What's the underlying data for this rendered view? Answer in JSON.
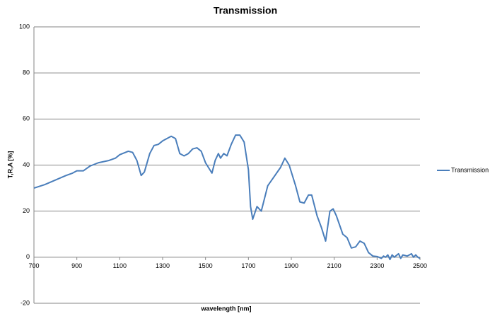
{
  "chart_data": {
    "type": "line",
    "title": "Transmission",
    "xlabel": "wavelength [nm]",
    "ylabel": "T,R,A [%]",
    "x": [
      700,
      750,
      800,
      850,
      880,
      900,
      930,
      960,
      1000,
      1050,
      1080,
      1100,
      1140,
      1160,
      1180,
      1200,
      1215,
      1240,
      1260,
      1280,
      1300,
      1320,
      1340,
      1360,
      1380,
      1400,
      1420,
      1440,
      1460,
      1480,
      1500,
      1520,
      1530,
      1545,
      1560,
      1570,
      1585,
      1600,
      1620,
      1640,
      1660,
      1680,
      1700,
      1710,
      1720,
      1740,
      1760,
      1790,
      1820,
      1850,
      1870,
      1890,
      1920,
      1940,
      1960,
      1980,
      1995,
      2020,
      2040,
      2060,
      2080,
      2095,
      2110,
      2140,
      2160,
      2180,
      2200,
      2220,
      2240,
      2260,
      2280,
      2300,
      2320,
      2330,
      2340,
      2350,
      2360,
      2370,
      2380,
      2400,
      2410,
      2420,
      2440,
      2460,
      2470,
      2480,
      2490,
      2500
    ],
    "series": [
      {
        "name": "Transmission",
        "color": "#4a7ebb",
        "values": [
          30,
          31.5,
          33.5,
          35.5,
          36.5,
          37.5,
          37.5,
          39.5,
          41,
          42,
          43,
          44.5,
          46,
          45.5,
          42,
          35.5,
          37,
          45,
          48.5,
          49,
          50.5,
          51.5,
          52.5,
          51.5,
          45,
          44,
          45,
          47,
          47.5,
          46,
          41,
          38,
          36.5,
          42,
          45,
          43,
          45,
          44,
          49,
          53,
          53,
          50,
          38,
          22,
          16.5,
          22,
          20,
          31,
          35,
          39,
          43,
          40,
          31,
          24,
          23.5,
          27,
          27,
          18,
          13,
          7,
          20,
          21,
          18,
          10,
          8.5,
          4,
          4.5,
          7,
          6,
          2,
          0.5,
          0.3,
          -0.5,
          0.5,
          0,
          1,
          -1,
          1,
          0,
          1.5,
          -0.5,
          1,
          0.5,
          1.5,
          0,
          1,
          0,
          -0.5
        ]
      }
    ],
    "xlim": [
      700,
      2500
    ],
    "xticks": [
      700,
      900,
      1100,
      1300,
      1500,
      1700,
      1900,
      2100,
      2300,
      2500
    ],
    "ylim": [
      -20,
      100
    ],
    "yticks": [
      -20,
      0,
      20,
      40,
      60,
      80,
      100
    ],
    "grid": true,
    "legend": "right"
  }
}
